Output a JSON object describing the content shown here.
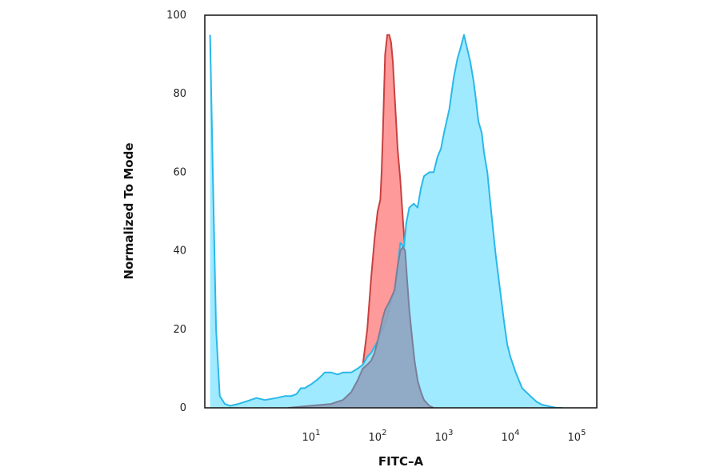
{
  "chart_data": {
    "type": "area",
    "title": "",
    "xlabel": "FITC–A",
    "ylabel": "Normalized To Mode",
    "x_scale": "log",
    "xlim": [
      0.25,
      200000
    ],
    "ylim": [
      0,
      100
    ],
    "x_ticks": [
      {
        "value": 10,
        "base": "10",
        "exp": "1"
      },
      {
        "value": 100,
        "base": "10",
        "exp": "2"
      },
      {
        "value": 1000,
        "base": "10",
        "exp": "3"
      },
      {
        "value": 10000,
        "base": "10",
        "exp": "4"
      },
      {
        "value": 100000,
        "base": "10",
        "exp": "5"
      }
    ],
    "y_ticks": [
      0,
      20,
      40,
      60,
      80,
      100
    ],
    "grid": false,
    "legend": "none",
    "series": [
      {
        "fill": "#ff9a9a",
        "stroke": "#c84040",
        "x": [
          4.5,
          20,
          30,
          40,
          50,
          60,
          70,
          80,
          90,
          100,
          110,
          115,
          120,
          125,
          130,
          140,
          150,
          160,
          170,
          180,
          190,
          200,
          220,
          240,
          260,
          280,
          300,
          330,
          360,
          400,
          450,
          500,
          600,
          700
        ],
        "y": [
          0,
          1,
          2,
          4,
          7,
          11,
          20,
          33,
          43,
          50,
          53,
          60,
          70,
          80,
          90,
          95,
          95,
          93,
          88,
          80,
          73,
          66,
          58,
          48,
          40,
          32,
          25,
          18,
          12,
          7,
          4,
          2,
          0.5,
          0
        ]
      },
      {
        "fill": "#98e8ff",
        "stroke": "#2ab8e8",
        "x": [
          0.3,
          0.33,
          0.37,
          0.42,
          0.5,
          0.6,
          0.8,
          1,
          1.5,
          2,
          3,
          4,
          5,
          6,
          7,
          8,
          10,
          12,
          14,
          16,
          20,
          25,
          30,
          40,
          50,
          60,
          70,
          80,
          100,
          120,
          140,
          160,
          180,
          200,
          220,
          250,
          270,
          300,
          350,
          400,
          450,
          500,
          600,
          700,
          800,
          900,
          1000,
          1200,
          1400,
          1600,
          1800,
          2000,
          2200,
          2500,
          2800,
          3000,
          3300,
          3700,
          4000,
          4500,
          5000,
          5500,
          6000,
          7000,
          8000,
          9000,
          10000,
          12000,
          15000,
          20000,
          25000,
          30000,
          40000,
          50000,
          60000
        ],
        "y": [
          95,
          60,
          20,
          3,
          1,
          0.5,
          1,
          1.5,
          2.5,
          2,
          2.5,
          3,
          3,
          3.5,
          5,
          5,
          6,
          7,
          8,
          9,
          9,
          8.5,
          9,
          9,
          10,
          11,
          13,
          14,
          17,
          20,
          23,
          27,
          30,
          36,
          42,
          41,
          47,
          51,
          52,
          51,
          56,
          59,
          60,
          60,
          64,
          66,
          70,
          76,
          84,
          89,
          92,
          95,
          92,
          88,
          83,
          79,
          73,
          70,
          65,
          60,
          52,
          45,
          39,
          30,
          22,
          16,
          13,
          9,
          5,
          3,
          1.5,
          0.8,
          0.3,
          0,
          0
        ]
      },
      {
        "fill": "#8fa5c0",
        "stroke": "#7a7f9a",
        "x": [
          4.5,
          20,
          30,
          40,
          50,
          60,
          70,
          80,
          90,
          100,
          110,
          120,
          130,
          140,
          150,
          160,
          170,
          180,
          190,
          200,
          220,
          240,
          260,
          280,
          300,
          330,
          360,
          400,
          450,
          500,
          600,
          700
        ],
        "y": [
          0,
          1,
          2,
          4,
          7,
          10,
          11,
          12,
          14,
          17,
          20,
          23,
          25,
          26,
          27,
          28,
          29,
          30,
          33,
          36,
          40,
          41,
          40,
          32,
          25,
          18,
          12,
          7,
          4,
          2,
          0.5,
          0
        ]
      }
    ]
  }
}
